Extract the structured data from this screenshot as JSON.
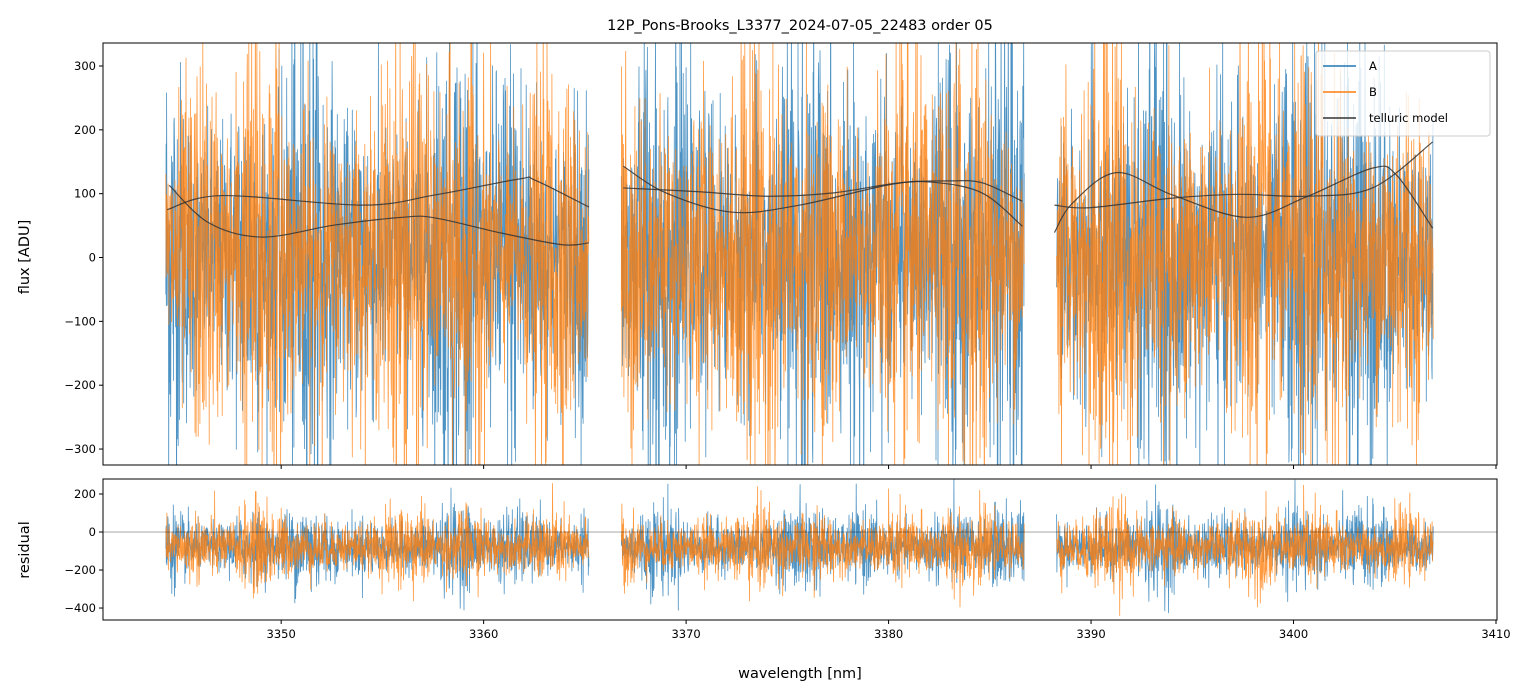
{
  "chart_data": [
    {
      "type": "line",
      "title": "12P_Pons-Brooks_L3377_2024-07-05_22483  order 05",
      "xlabel": "wavelength [nm]",
      "ylabel": "flux [ADU]",
      "xlim": [
        3341.2,
        3410.05
      ],
      "ylim": [
        -325,
        336
      ],
      "yticks": [
        -300,
        -200,
        -100,
        0,
        100,
        200,
        300
      ],
      "xticks": [
        3350,
        3360,
        3370,
        3380,
        3390,
        3400,
        3410
      ],
      "legend": {
        "placement": "top-right",
        "entries": [
          "A",
          "B",
          "telluric model"
        ]
      },
      "colors": {
        "A": "#1f77b4",
        "B": "#ff7f0e",
        "model": "#333333"
      },
      "segments": [
        [
          3344.3,
          3365.2
        ],
        [
          3366.8,
          3386.7
        ],
        [
          3388.3,
          3406.9
        ]
      ],
      "noise": {
        "A_sigma": 150,
        "B_sigma": 150,
        "mean": 0
      },
      "series": [
        {
          "name": "A",
          "description": "noisy spectrum, shown per segment"
        },
        {
          "name": "B",
          "description": "noisy spectrum, shown per segment"
        }
      ],
      "telluric_model": [
        {
          "x": [
            3344.37,
            3347.08,
            3354.0,
            3357.6,
            3361.76,
            3362.55,
            3365.2
          ],
          "y": [
            75,
            97,
            82,
            98,
            123,
            121,
            79
          ]
        },
        {
          "x": [
            3344.47,
            3346.44,
            3349.06,
            3352.67,
            3355.98,
            3357.6,
            3360.92,
            3363.88,
            3365.2
          ],
          "y": [
            113,
            54,
            32,
            51,
            63,
            62,
            38,
            20,
            23
          ]
        },
        {
          "x": [
            3366.9,
            3369.02,
            3372.28,
            3375.59,
            3380.04,
            3382.16,
            3384.63,
            3386.61
          ],
          "y": [
            143,
            101,
            71,
            82,
            114,
            118,
            101,
            49
          ]
        },
        {
          "x": [
            3366.9,
            3370.65,
            3373.96,
            3377.22,
            3380.53,
            3383.0,
            3384.63,
            3386.61
          ],
          "y": [
            109,
            103,
            96,
            101,
            117,
            120,
            117,
            88
          ]
        },
        {
          "x": [
            3388.19,
            3389.08,
            3391.25,
            3394.02,
            3397.68,
            3400.64,
            3403.9,
            3405.09,
            3406.87
          ],
          "y": [
            39,
            85,
            133,
            98,
            63,
            95,
            140,
            129,
            46
          ]
        },
        {
          "x": [
            3388.19,
            3389.92,
            3394.02,
            3397.33,
            3400.64,
            3403.9,
            3406.87
          ],
          "y": [
            82,
            78,
            93,
            99,
            96,
            109,
            181
          ]
        }
      ]
    },
    {
      "type": "line",
      "xlabel": "wavelength [nm]",
      "ylabel": "residual",
      "xlim": [
        3341.2,
        3410.05
      ],
      "ylim": [
        -463,
        279
      ],
      "yticks": [
        -400,
        -200,
        0,
        200
      ],
      "xticks": [
        3350,
        3360,
        3370,
        3380,
        3390,
        3400,
        3410
      ],
      "noise": {
        "mean": -80,
        "sigma": 90
      },
      "zero_line": 0
    }
  ]
}
